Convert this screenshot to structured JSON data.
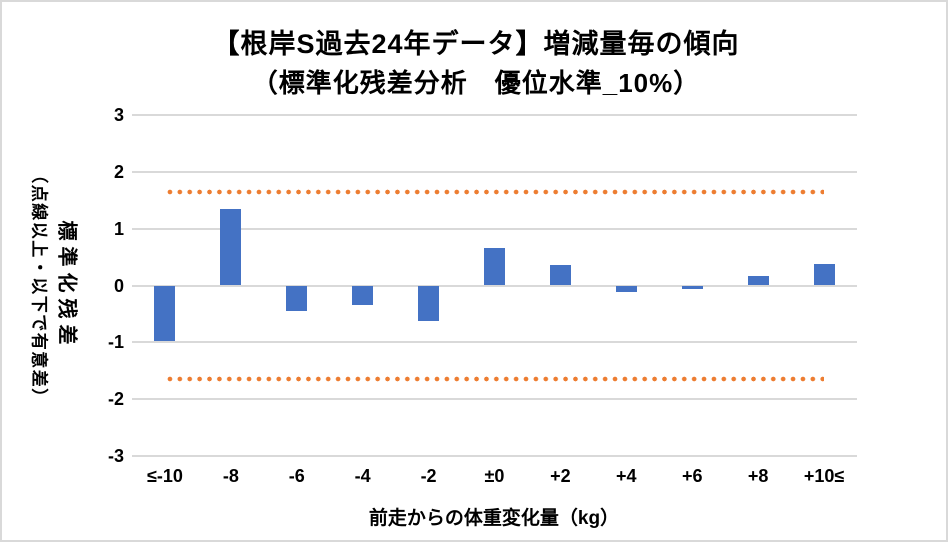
{
  "chart_data": {
    "type": "bar",
    "title": "【根岸S過去24年データ】増減量毎の傾向",
    "subtitle": "（標準化残差分析　優位水準_10%）",
    "categories": [
      "≤-10",
      "-8",
      "-6",
      "-4",
      "-2",
      "±0",
      "+2",
      "+4",
      "+6",
      "+8",
      "+10≤"
    ],
    "values": [
      -0.98,
      1.35,
      -0.44,
      -0.35,
      -0.62,
      0.66,
      0.36,
      -0.12,
      -0.06,
      0.17,
      0.37
    ],
    "xlabel": "前走からの体重変化量（kg）",
    "ylabel": "標準化残差",
    "ylabel_note": "（点線以上・以下で有意差）",
    "ylim": [
      -3,
      3
    ],
    "yticks": [
      3,
      2,
      1,
      0,
      -1,
      -2,
      -3
    ],
    "significance_lines": [
      1.645,
      -1.645
    ],
    "grid": "horizontal",
    "legend": "none",
    "colors": {
      "bar": "#4472C4",
      "dotted_line": "#ED7D31",
      "gridline": "#D9D9D9",
      "text": "#000000",
      "background": "#FFFFFF",
      "border": "#D9D9D9"
    }
  }
}
